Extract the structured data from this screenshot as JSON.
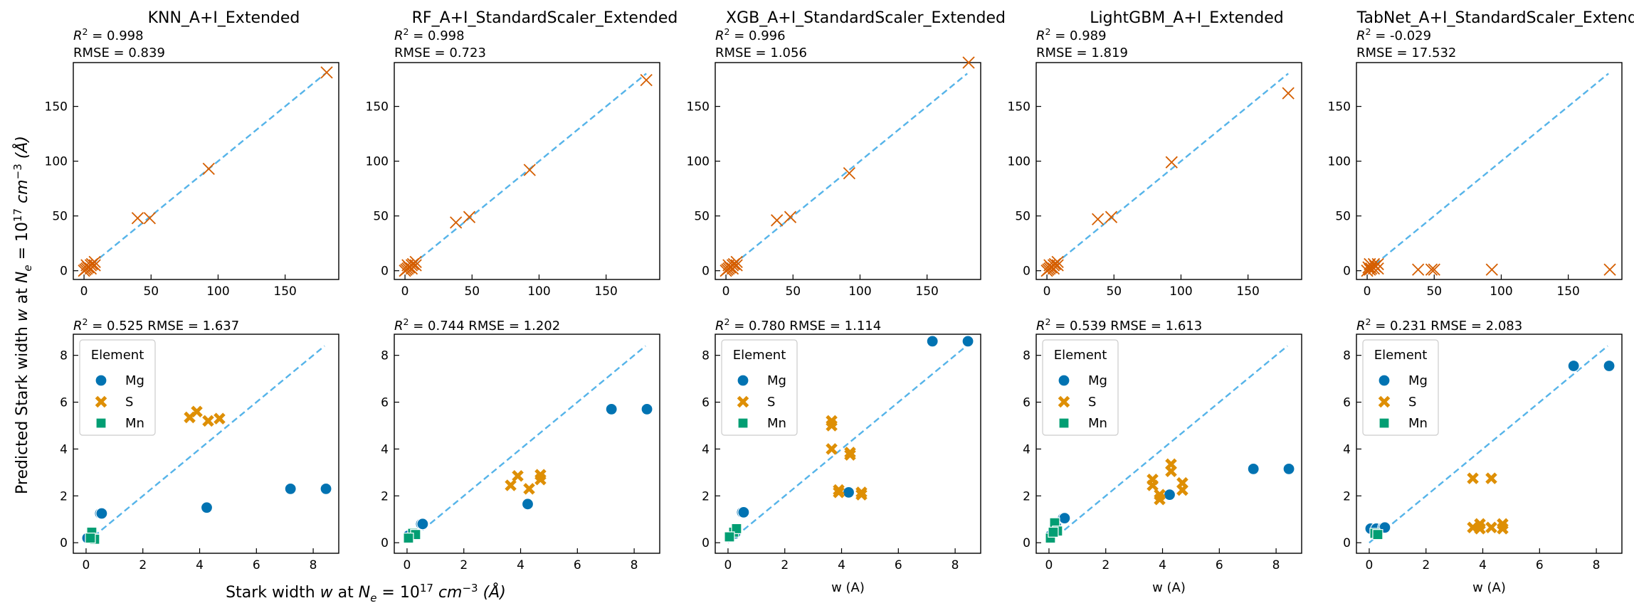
{
  "figure": {
    "ylabel_prefix": "Predicted Stark width w at N",
    "xlabel_prefix": "Stark width w at N",
    "label_units": "= 10",
    "label_exp": "17",
    "label_unit_tail": " cm",
    "label_unit_exp": "−3",
    "label_angstrom": " (Å)",
    "xlabel_simple": "w (A)",
    "legend_title": "Element",
    "colors": {
      "Mg": "#0173b2",
      "S": "#de8f05",
      "Mn": "#029e73",
      "cross": "#d55e00",
      "diagonal": "#56b4e9"
    }
  },
  "chart_data": [
    {
      "type": "scatter",
      "row": 0,
      "col": 0,
      "title": "KNN_A+I_Extended",
      "r2": "0.998",
      "rmse": "0.839",
      "xlim": [
        -8,
        190
      ],
      "ylim": [
        -8,
        190
      ],
      "xticks": [
        0,
        50,
        100,
        150
      ],
      "yticks": [
        0,
        50,
        100,
        150
      ],
      "diagonal": [
        0,
        180
      ],
      "points": [
        [
          0,
          0
        ],
        [
          1,
          1
        ],
        [
          2,
          2
        ],
        [
          3,
          3
        ],
        [
          5,
          5
        ],
        [
          6,
          6
        ],
        [
          8,
          8
        ],
        [
          2,
          5
        ],
        [
          5,
          2
        ],
        [
          8,
          5
        ],
        [
          40,
          48
        ],
        [
          49,
          48
        ],
        [
          93,
          93
        ],
        [
          181,
          181
        ]
      ]
    },
    {
      "type": "scatter",
      "row": 0,
      "col": 1,
      "title": "RF_A+I_StandardScaler_Extended",
      "r2": "0.998",
      "rmse": "0.723",
      "xlim": [
        -8,
        190
      ],
      "ylim": [
        -8,
        190
      ],
      "xticks": [
        0,
        50,
        100,
        150
      ],
      "yticks": [
        0,
        50,
        100,
        150
      ],
      "diagonal": [
        0,
        180
      ],
      "points": [
        [
          0,
          0
        ],
        [
          1,
          1
        ],
        [
          2,
          2
        ],
        [
          3,
          3
        ],
        [
          5,
          5
        ],
        [
          6,
          6
        ],
        [
          8,
          8
        ],
        [
          2,
          5
        ],
        [
          5,
          2
        ],
        [
          8,
          5
        ],
        [
          38,
          44
        ],
        [
          48,
          49
        ],
        [
          93,
          92
        ],
        [
          180,
          174
        ]
      ]
    },
    {
      "type": "scatter",
      "row": 0,
      "col": 2,
      "title": "XGB_A+I_StandardScaler_Extended",
      "r2": "0.996",
      "rmse": "1.056",
      "xlim": [
        -8,
        190
      ],
      "ylim": [
        -8,
        190
      ],
      "xticks": [
        0,
        50,
        100,
        150
      ],
      "yticks": [
        0,
        50,
        100,
        150
      ],
      "diagonal": [
        0,
        180
      ],
      "points": [
        [
          0,
          0
        ],
        [
          1,
          1
        ],
        [
          2,
          2
        ],
        [
          3,
          3
        ],
        [
          5,
          5
        ],
        [
          6,
          6
        ],
        [
          8,
          8
        ],
        [
          2,
          5
        ],
        [
          5,
          2
        ],
        [
          8,
          5
        ],
        [
          38,
          46
        ],
        [
          48,
          49
        ],
        [
          92,
          89
        ],
        [
          181,
          190
        ]
      ]
    },
    {
      "type": "scatter",
      "row": 0,
      "col": 3,
      "title": "LightGBM_A+I_Extended",
      "r2": "0.989",
      "rmse": "1.819",
      "xlim": [
        -8,
        190
      ],
      "ylim": [
        -8,
        190
      ],
      "xticks": [
        0,
        50,
        100,
        150
      ],
      "yticks": [
        0,
        50,
        100,
        150
      ],
      "diagonal": [
        0,
        180
      ],
      "points": [
        [
          0,
          0
        ],
        [
          1,
          1
        ],
        [
          2,
          2
        ],
        [
          3,
          3
        ],
        [
          5,
          5
        ],
        [
          6,
          6
        ],
        [
          8,
          8
        ],
        [
          2,
          5
        ],
        [
          5,
          2
        ],
        [
          8,
          5
        ],
        [
          38,
          47
        ],
        [
          48,
          49
        ],
        [
          93,
          99
        ],
        [
          180,
          162
        ]
      ]
    },
    {
      "type": "scatter",
      "row": 0,
      "col": 4,
      "title": "TabNet_A+I_StandardScaler_Extended",
      "r2": "-0.029",
      "rmse": "17.532",
      "xlim": [
        -8,
        190
      ],
      "ylim": [
        -8,
        190
      ],
      "xticks": [
        0,
        50,
        100,
        150
      ],
      "yticks": [
        0,
        50,
        100,
        150
      ],
      "diagonal": [
        0,
        180
      ],
      "points": [
        [
          0,
          0
        ],
        [
          1,
          3
        ],
        [
          2,
          6
        ],
        [
          3,
          2
        ],
        [
          5,
          6
        ],
        [
          6,
          4
        ],
        [
          8,
          6
        ],
        [
          2,
          1
        ],
        [
          5,
          2
        ],
        [
          8,
          2
        ],
        [
          38,
          1
        ],
        [
          48,
          1
        ],
        [
          50,
          1
        ],
        [
          93,
          1
        ],
        [
          181,
          1
        ]
      ]
    },
    {
      "type": "scatter",
      "row": 1,
      "col": 0,
      "r2": "0.525",
      "rmse": "1.637",
      "xlim": [
        -0.45,
        8.9
      ],
      "ylim": [
        -0.45,
        8.9
      ],
      "xticks": [
        0,
        2,
        4,
        6,
        8
      ],
      "yticks": [
        0,
        2,
        4,
        6,
        8
      ],
      "diagonal": [
        0,
        8.4
      ],
      "legend": [
        "Mg",
        "S",
        "Mn"
      ],
      "series": [
        {
          "name": "Mg",
          "points": [
            [
              0.05,
              0.2
            ],
            [
              0.25,
              0.2
            ],
            [
              0.5,
              1.25
            ],
            [
              0.55,
              1.25
            ],
            [
              4.25,
              1.5
            ],
            [
              7.2,
              2.3
            ],
            [
              8.45,
              2.3
            ]
          ]
        },
        {
          "name": "S",
          "points": [
            [
              3.65,
              5.35
            ],
            [
              3.9,
              5.6
            ],
            [
              4.3,
              5.2
            ],
            [
              4.7,
              5.3
            ]
          ]
        },
        {
          "name": "Mn",
          "points": [
            [
              0.2,
              0.45
            ],
            [
              0.3,
              0.15
            ],
            [
              0.15,
              0.2
            ]
          ]
        }
      ]
    },
    {
      "type": "scatter",
      "row": 1,
      "col": 1,
      "r2": "0.744",
      "rmse": "1.202",
      "xlim": [
        -0.45,
        8.9
      ],
      "ylim": [
        -0.45,
        8.9
      ],
      "xticks": [
        0,
        2,
        4,
        6,
        8
      ],
      "yticks": [
        0,
        2,
        4,
        6,
        8
      ],
      "diagonal": [
        0,
        8.4
      ],
      "series": [
        {
          "name": "Mg",
          "points": [
            [
              0.05,
              0.3
            ],
            [
              0.25,
              0.35
            ],
            [
              0.5,
              0.8
            ],
            [
              0.55,
              0.8
            ],
            [
              4.25,
              1.65
            ],
            [
              7.2,
              5.7
            ],
            [
              8.45,
              5.7
            ]
          ]
        },
        {
          "name": "S",
          "points": [
            [
              3.65,
              2.45
            ],
            [
              3.9,
              2.85
            ],
            [
              4.3,
              2.3
            ],
            [
              4.7,
              2.7
            ],
            [
              4.7,
              2.9
            ]
          ]
        },
        {
          "name": "Mn",
          "points": [
            [
              0.2,
              0.4
            ],
            [
              0.3,
              0.35
            ],
            [
              0.05,
              0.2
            ]
          ]
        }
      ]
    },
    {
      "type": "scatter",
      "row": 1,
      "col": 2,
      "r2": "0.780",
      "rmse": "1.114",
      "xlim": [
        -0.45,
        8.9
      ],
      "ylim": [
        -0.45,
        8.9
      ],
      "xticks": [
        0,
        2,
        4,
        6,
        8
      ],
      "yticks": [
        0,
        2,
        4,
        6,
        8
      ],
      "diagonal": [
        0,
        8.4
      ],
      "xlabel": "w (A)",
      "legend": [
        "Mg",
        "S",
        "Mn"
      ],
      "series": [
        {
          "name": "Mg",
          "points": [
            [
              0.05,
              0.25
            ],
            [
              0.25,
              0.4
            ],
            [
              0.5,
              1.3
            ],
            [
              0.55,
              1.3
            ],
            [
              4.25,
              2.15
            ],
            [
              7.2,
              8.6
            ],
            [
              8.45,
              8.6
            ]
          ]
        },
        {
          "name": "S",
          "points": [
            [
              3.65,
              5.2
            ],
            [
              3.65,
              5.0
            ],
            [
              3.65,
              4.0
            ],
            [
              3.9,
              2.25
            ],
            [
              3.9,
              2.15
            ],
            [
              4.3,
              3.85
            ],
            [
              4.3,
              3.75
            ],
            [
              4.7,
              2.15
            ],
            [
              4.7,
              2.05
            ]
          ]
        },
        {
          "name": "Mn",
          "points": [
            [
              0.2,
              0.45
            ],
            [
              0.3,
              0.6
            ],
            [
              0.05,
              0.25
            ]
          ]
        }
      ]
    },
    {
      "type": "scatter",
      "row": 1,
      "col": 3,
      "r2": "0.539",
      "rmse": "1.613",
      "xlim": [
        -0.45,
        8.9
      ],
      "ylim": [
        -0.45,
        8.9
      ],
      "xticks": [
        0,
        2,
        4,
        6,
        8
      ],
      "yticks": [
        0,
        2,
        4,
        6,
        8
      ],
      "diagonal": [
        0,
        8.4
      ],
      "xlabel": "w (A)",
      "legend": [
        "Mg",
        "S",
        "Mn"
      ],
      "series": [
        {
          "name": "Mg",
          "points": [
            [
              0.05,
              0.3
            ],
            [
              0.25,
              0.85
            ],
            [
              0.5,
              1.05
            ],
            [
              0.55,
              1.05
            ],
            [
              4.25,
              2.05
            ],
            [
              7.2,
              3.15
            ],
            [
              8.45,
              3.15
            ]
          ]
        },
        {
          "name": "S",
          "points": [
            [
              3.65,
              2.7
            ],
            [
              3.65,
              2.45
            ],
            [
              3.9,
              2.05
            ],
            [
              3.9,
              1.85
            ],
            [
              4.3,
              3.35
            ],
            [
              4.3,
              3.05
            ],
            [
              4.7,
              2.55
            ],
            [
              4.7,
              2.25
            ]
          ]
        },
        {
          "name": "Mn",
          "points": [
            [
              0.2,
              0.85
            ],
            [
              0.3,
              0.5
            ],
            [
              0.05,
              0.2
            ],
            [
              0.15,
              0.45
            ]
          ]
        }
      ]
    },
    {
      "type": "scatter",
      "row": 1,
      "col": 4,
      "r2": "0.231",
      "rmse": "2.083",
      "xlim": [
        -0.45,
        8.9
      ],
      "ylim": [
        -0.45,
        8.9
      ],
      "xticks": [
        0,
        2,
        4,
        6,
        8
      ],
      "yticks": [
        0,
        2,
        4,
        6,
        8
      ],
      "diagonal": [
        0,
        8.4
      ],
      "xlabel": "w (A)",
      "legend": [
        "Mg",
        "S",
        "Mn"
      ],
      "series": [
        {
          "name": "Mg",
          "points": [
            [
              0.05,
              0.6
            ],
            [
              0.25,
              0.6
            ],
            [
              0.5,
              0.65
            ],
            [
              0.55,
              0.65
            ],
            [
              7.2,
              7.55
            ],
            [
              8.45,
              7.55
            ]
          ]
        },
        {
          "name": "S",
          "points": [
            [
              3.65,
              2.75
            ],
            [
              3.65,
              0.65
            ],
            [
              3.9,
              0.6
            ],
            [
              3.9,
              0.8
            ],
            [
              4.3,
              2.75
            ],
            [
              4.3,
              0.65
            ],
            [
              4.7,
              0.6
            ],
            [
              4.7,
              0.8
            ]
          ]
        },
        {
          "name": "Mn",
          "points": [
            [
              0.2,
              0.4
            ],
            [
              0.3,
              0.35
            ]
          ]
        }
      ]
    }
  ]
}
